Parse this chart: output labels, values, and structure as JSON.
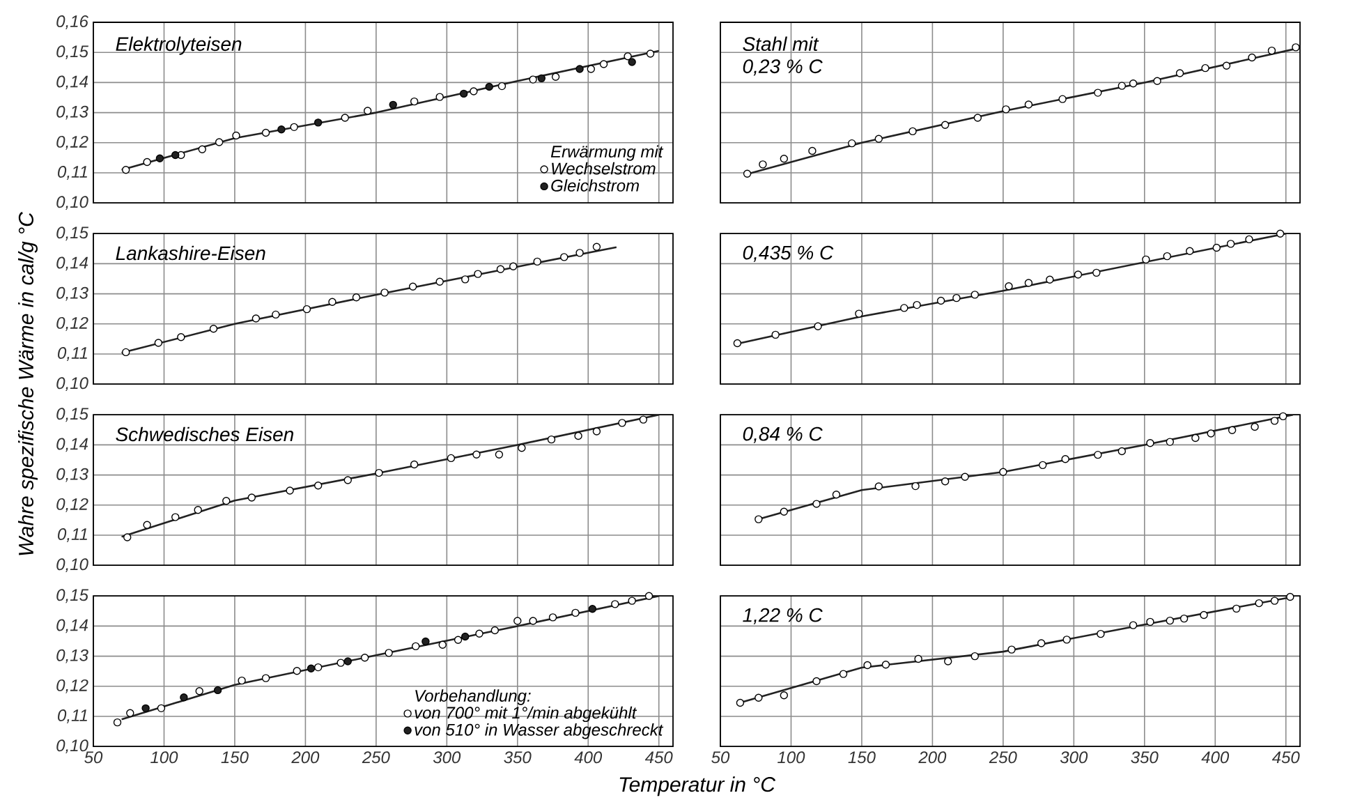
{
  "chart_data": [
    {
      "type": "scatter",
      "title": "Elektrolyteisen",
      "legend_title": "Erwärmung mit",
      "legend": "bottom right",
      "grid": true,
      "line_style": "solid",
      "tick_labels": "y",
      "xlim": [
        50,
        460
      ],
      "ylim": [
        0.1,
        0.16
      ],
      "xticks": [
        50,
        100,
        150,
        200,
        250,
        300,
        350,
        400,
        450
      ],
      "yticks": [
        {
          "value": 0.1,
          "label": "0,10"
        },
        {
          "value": 0.11,
          "label": "0,11"
        },
        {
          "value": 0.12,
          "label": "0,12"
        },
        {
          "value": 0.13,
          "label": "0,13"
        },
        {
          "value": 0.14,
          "label": "0,14"
        },
        {
          "value": 0.15,
          "label": "0,15"
        },
        {
          "value": 0.16,
          "label": "0,16"
        }
      ],
      "series": [
        {
          "type": "line",
          "marker": "none",
          "color": "#222222",
          "x": [
            70,
            150,
            250,
            350,
            450
          ],
          "values": [
            0.111,
            0.1215,
            0.13,
            0.1405,
            0.1505
          ]
        },
        {
          "name": "Wechselstrom",
          "marker": "circle",
          "color": "#ffffff",
          "x": [
            73,
            88,
            112,
            127,
            139,
            151,
            172,
            192,
            228,
            244,
            277,
            295,
            319,
            339,
            361,
            377,
            402,
            411,
            428,
            444
          ],
          "values": [
            0.111,
            0.1136,
            0.1159,
            0.1178,
            0.1202,
            0.1224,
            0.1233,
            0.1252,
            0.1283,
            0.1306,
            0.1337,
            0.1352,
            0.1371,
            0.1388,
            0.141,
            0.1419,
            0.1445,
            0.1461,
            0.1487,
            0.1496
          ]
        },
        {
          "name": "Gleichstrom",
          "marker": "circle",
          "color": "#222222",
          "x": [
            97,
            108,
            183,
            209,
            262,
            312,
            330,
            367,
            394,
            431
          ],
          "values": [
            0.1148,
            0.1159,
            0.1244,
            0.1267,
            0.1326,
            0.1363,
            0.1386,
            0.1414,
            0.1445,
            0.1468
          ]
        }
      ]
    },
    {
      "type": "scatter",
      "title": "Stahl mit",
      "subtitle": "0,23 % C",
      "grid": true,
      "line_style": "solid",
      "tick_labels": false,
      "xlim": [
        50,
        460
      ],
      "ylim": [
        0.1,
        0.16
      ],
      "xticks": [
        50,
        100,
        150,
        200,
        250,
        300,
        350,
        400,
        450
      ],
      "yticks": [
        0.1,
        0.11,
        0.12,
        0.13,
        0.14,
        0.15,
        0.16
      ],
      "series": [
        {
          "type": "line",
          "marker": "none",
          "color": "#222222",
          "x": [
            70,
            150,
            250,
            350,
            455
          ],
          "values": [
            0.1097,
            0.12,
            0.1305,
            0.14,
            0.151
          ]
        },
        {
          "marker": "circle",
          "color": "#ffffff",
          "x": [
            69,
            80,
            95,
            115,
            143,
            162,
            186,
            209,
            232,
            252,
            268,
            292,
            317,
            334,
            342,
            359,
            375,
            393,
            408,
            426,
            440,
            457
          ],
          "values": [
            0.1097,
            0.1128,
            0.1147,
            0.1173,
            0.1198,
            0.1213,
            0.1238,
            0.1259,
            0.1283,
            0.1311,
            0.1327,
            0.1345,
            0.1366,
            0.1389,
            0.1397,
            0.1405,
            0.1431,
            0.1448,
            0.1456,
            0.1483,
            0.1506,
            0.1517
          ]
        }
      ]
    },
    {
      "type": "scatter",
      "title": "Lankashire-Eisen",
      "ylabel": "Wahre spezifische Wärme in cal/g °C",
      "grid": true,
      "line_style": "solid",
      "tick_labels": "y",
      "xlim": [
        50,
        460
      ],
      "ylim": [
        0.1,
        0.15
      ],
      "xticks": [
        50,
        100,
        150,
        200,
        250,
        300,
        350,
        400,
        450
      ],
      "yticks": [
        {
          "value": 0.1,
          "label": "0,10"
        },
        {
          "value": 0.11,
          "label": "0,11"
        },
        {
          "value": 0.12,
          "label": "0,12"
        },
        {
          "value": 0.13,
          "label": "0,13"
        },
        {
          "value": 0.14,
          "label": "0,14"
        },
        {
          "value": 0.15,
          "label": "0,15"
        }
      ],
      "series": [
        {
          "type": "line",
          "marker": "none",
          "color": "#222222",
          "x": [
            70,
            150,
            250,
            350,
            420
          ],
          "values": [
            0.1104,
            0.12,
            0.1297,
            0.139,
            0.1455
          ]
        },
        {
          "marker": "circle",
          "color": "#ffffff",
          "x": [
            73,
            96,
            112,
            135,
            165,
            179,
            201,
            219,
            236,
            256,
            276,
            295,
            313,
            322,
            338,
            347,
            364,
            383,
            394,
            406
          ],
          "values": [
            0.1106,
            0.1137,
            0.1156,
            0.1184,
            0.1218,
            0.1231,
            0.1249,
            0.1273,
            0.1288,
            0.1304,
            0.1324,
            0.134,
            0.1348,
            0.1366,
            0.1382,
            0.1391,
            0.1407,
            0.1422,
            0.1436,
            0.1456
          ]
        }
      ]
    },
    {
      "type": "scatter",
      "title": "0,435 % C",
      "grid": true,
      "line_style": "solid",
      "tick_labels": false,
      "xlim": [
        50,
        460
      ],
      "ylim": [
        0.1,
        0.15
      ],
      "xticks": [
        50,
        100,
        150,
        200,
        250,
        300,
        350,
        400,
        450
      ],
      "yticks": [
        0.1,
        0.11,
        0.12,
        0.13,
        0.14,
        0.15
      ],
      "series": [
        {
          "type": "line",
          "marker": "none",
          "color": "#222222",
          "x": [
            62,
            150,
            250,
            350,
            450
          ],
          "values": [
            0.1134,
            0.1225,
            0.131,
            0.1405,
            0.15
          ]
        },
        {
          "marker": "circle",
          "color": "#ffffff",
          "x": [
            62,
            89,
            119,
            148,
            180,
            189,
            206,
            217,
            230,
            254,
            268,
            283,
            303,
            316,
            351,
            366,
            382,
            401,
            411,
            424,
            446
          ],
          "values": [
            0.1136,
            0.1164,
            0.1192,
            0.1234,
            0.1253,
            0.1263,
            0.1277,
            0.1286,
            0.1297,
            0.1325,
            0.1336,
            0.1347,
            0.1364,
            0.137,
            0.1414,
            0.1425,
            0.1442,
            0.1453,
            0.1466,
            0.1481,
            0.15
          ]
        }
      ]
    },
    {
      "type": "scatter",
      "title": "Schwedisches Eisen",
      "grid": true,
      "line_style": "solid",
      "tick_labels": "y",
      "xlim": [
        50,
        460
      ],
      "ylim": [
        0.1,
        0.15
      ],
      "xticks": [
        50,
        100,
        150,
        200,
        250,
        300,
        350,
        400,
        450
      ],
      "yticks": [
        {
          "value": 0.1,
          "label": "0,10"
        },
        {
          "value": 0.11,
          "label": "0,11"
        },
        {
          "value": 0.12,
          "label": "0,12"
        },
        {
          "value": 0.13,
          "label": "0,13"
        },
        {
          "value": 0.14,
          "label": "0,14"
        },
        {
          "value": 0.15,
          "label": "0,15"
        }
      ],
      "series": [
        {
          "type": "line",
          "marker": "none",
          "color": "#222222",
          "x": [
            70,
            150,
            250,
            350,
            450
          ],
          "values": [
            0.1095,
            0.1215,
            0.1305,
            0.14,
            0.15
          ]
        },
        {
          "marker": "circle",
          "color": "#ffffff",
          "x": [
            74,
            88,
            108,
            124,
            144,
            162,
            189,
            209,
            230,
            252,
            277,
            303,
            321,
            337,
            353,
            374,
            393,
            406,
            424,
            439
          ],
          "values": [
            0.1093,
            0.1134,
            0.116,
            0.1184,
            0.1214,
            0.1225,
            0.1248,
            0.1265,
            0.1283,
            0.1307,
            0.1335,
            0.1356,
            0.1368,
            0.1368,
            0.139,
            0.1418,
            0.143,
            0.1445,
            0.1473,
            0.1484
          ]
        }
      ]
    },
    {
      "type": "scatter",
      "title": "0,84 % C",
      "grid": true,
      "line_style": "solid",
      "tick_labels": false,
      "xlim": [
        50,
        460
      ],
      "ylim": [
        0.1,
        0.15
      ],
      "xticks": [
        50,
        100,
        150,
        200,
        250,
        300,
        350,
        400,
        450
      ],
      "yticks": [
        0.1,
        0.11,
        0.12,
        0.13,
        0.14,
        0.15
      ],
      "series": [
        {
          "type": "line",
          "marker": "none",
          "color": "#222222",
          "x": [
            77,
            150,
            250,
            350,
            455
          ],
          "values": [
            0.1153,
            0.125,
            0.131,
            0.14,
            0.15
          ]
        },
        {
          "marker": "circle",
          "color": "#ffffff",
          "x": [
            77,
            95,
            118,
            132,
            162,
            188,
            209,
            223,
            250,
            278,
            294,
            317,
            334,
            354,
            368,
            386,
            397,
            412,
            428,
            442,
            448
          ],
          "values": [
            0.1153,
            0.1178,
            0.1204,
            0.1235,
            0.1262,
            0.1263,
            0.1279,
            0.1294,
            0.131,
            0.1333,
            0.1353,
            0.1367,
            0.1379,
            0.1406,
            0.141,
            0.1423,
            0.1438,
            0.1449,
            0.146,
            0.148,
            0.1495
          ]
        }
      ]
    },
    {
      "type": "scatter",
      "xlabel": "Temperatur in °C",
      "legend_title": "Vorbehandlung:",
      "legend": "bottom right",
      "grid": true,
      "line_style": "solid",
      "xlim": [
        50,
        460
      ],
      "ylim": [
        0.1,
        0.15
      ],
      "xticks": [
        50,
        100,
        150,
        200,
        250,
        300,
        350,
        400,
        450
      ],
      "yticks": [
        {
          "value": 0.1,
          "label": "0,10"
        },
        {
          "value": 0.11,
          "label": "0,11"
        },
        {
          "value": 0.12,
          "label": "0,12"
        },
        {
          "value": 0.13,
          "label": "0,13"
        },
        {
          "value": 0.14,
          "label": "0,14"
        },
        {
          "value": 0.15,
          "label": "0,15"
        }
      ],
      "series": [
        {
          "type": "line",
          "marker": "none",
          "color": "#222222",
          "x": [
            70,
            150,
            250,
            350,
            450
          ],
          "values": [
            0.109,
            0.1205,
            0.1303,
            0.14,
            0.15
          ]
        },
        {
          "name": "von 700° mit 1°/min abgekühlt",
          "marker": "circle",
          "color": "#ffffff",
          "x": [
            67,
            76,
            98,
            125,
            155,
            172,
            194,
            209,
            225,
            242,
            259,
            278,
            297,
            308,
            323,
            334,
            350,
            361,
            375,
            391,
            419,
            431,
            443
          ],
          "values": [
            0.108,
            0.1111,
            0.1127,
            0.1184,
            0.1219,
            0.1227,
            0.1251,
            0.1263,
            0.1278,
            0.1295,
            0.1311,
            0.1333,
            0.1338,
            0.1354,
            0.1375,
            0.1386,
            0.1417,
            0.1417,
            0.1429,
            0.1444,
            0.1473,
            0.1484,
            0.15
          ]
        },
        {
          "name": "von 510° in Wasser abgeschreckt",
          "marker": "circle",
          "color": "#222222",
          "x": [
            87,
            114,
            138,
            204,
            230,
            285,
            313,
            403
          ],
          "values": [
            0.1127,
            0.1163,
            0.1187,
            0.1259,
            0.1283,
            0.1349,
            0.1365,
            0.1457
          ]
        }
      ]
    },
    {
      "type": "scatter",
      "title": "1,22 % C",
      "grid": true,
      "line_style": "solid",
      "tick_labels": "x",
      "xlim": [
        50,
        460
      ],
      "ylim": [
        0.1,
        0.15
      ],
      "xticks": [
        50,
        100,
        150,
        200,
        250,
        300,
        350,
        400,
        450
      ],
      "yticks": [
        0.1,
        0.11,
        0.12,
        0.13,
        0.14,
        0.15
      ],
      "series": [
        {
          "type": "line",
          "marker": "none",
          "color": "#222222",
          "x": [
            62,
            150,
            250,
            350,
            455
          ],
          "values": [
            0.1143,
            0.1262,
            0.1315,
            0.1405,
            0.1497
          ]
        },
        {
          "marker": "circle",
          "color": "#ffffff",
          "x": [
            64,
            77,
            95,
            118,
            137,
            154,
            167,
            190,
            211,
            230,
            256,
            277,
            295,
            319,
            342,
            354,
            368,
            378,
            392,
            415,
            431,
            442,
            453
          ],
          "values": [
            0.1145,
            0.1162,
            0.117,
            0.1217,
            0.1241,
            0.127,
            0.1272,
            0.1291,
            0.1283,
            0.13,
            0.1322,
            0.1343,
            0.1355,
            0.1374,
            0.1403,
            0.1414,
            0.1418,
            0.1425,
            0.1437,
            0.1458,
            0.1476,
            0.1484,
            0.1497
          ]
        }
      ]
    }
  ]
}
